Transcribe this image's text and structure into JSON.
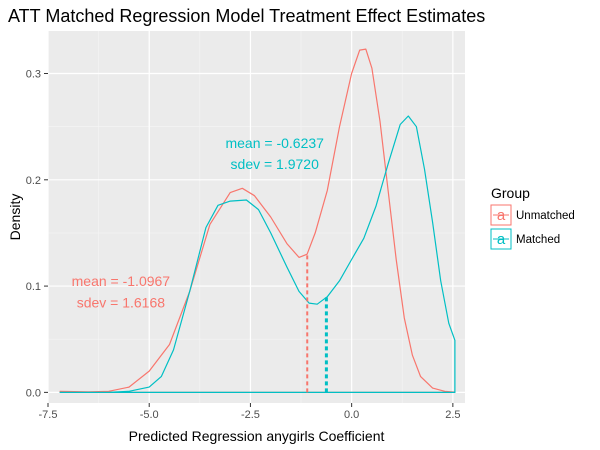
{
  "chart_data": {
    "type": "line",
    "title": "ATT Matched Regression Model Treatment Effect Estimates",
    "xlabel": "Predicted Regression anygirls Coefficient",
    "ylabel": "Density",
    "xlim": [
      -7.5,
      2.8
    ],
    "ylim": [
      -0.01,
      0.34
    ],
    "x_ticks": [
      -7.5,
      -5.0,
      -2.5,
      0.0,
      2.5
    ],
    "x_tick_labels": [
      "-7.5",
      "-5.0",
      "-2.5",
      "0.0",
      "2.5"
    ],
    "y_ticks": [
      0.0,
      0.1,
      0.2,
      0.3
    ],
    "y_tick_labels": [
      "0.0",
      "0.1",
      "0.2",
      "0.3"
    ],
    "grid": true,
    "background": "#ebebeb",
    "legend": {
      "title": "Group",
      "placement": "right",
      "key_glyph": "a",
      "entries": [
        "Unmatched",
        "Matched"
      ]
    },
    "series": [
      {
        "name": "Unmatched",
        "color": "#f8766d",
        "points": [
          [
            -7.2,
            0.001
          ],
          [
            -6.5,
            0.0005
          ],
          [
            -6.0,
            0.001
          ],
          [
            -5.5,
            0.005
          ],
          [
            -5.0,
            0.02
          ],
          [
            -4.5,
            0.045
          ],
          [
            -4.0,
            0.095
          ],
          [
            -3.5,
            0.158
          ],
          [
            -3.0,
            0.188
          ],
          [
            -2.7,
            0.192
          ],
          [
            -2.4,
            0.185
          ],
          [
            -2.0,
            0.165
          ],
          [
            -1.6,
            0.14
          ],
          [
            -1.3,
            0.127
          ],
          [
            -1.1,
            0.13
          ],
          [
            -0.9,
            0.15
          ],
          [
            -0.6,
            0.19
          ],
          [
            -0.3,
            0.25
          ],
          [
            0.0,
            0.3
          ],
          [
            0.2,
            0.322
          ],
          [
            0.35,
            0.323
          ],
          [
            0.5,
            0.305
          ],
          [
            0.7,
            0.255
          ],
          [
            0.9,
            0.19
          ],
          [
            1.1,
            0.125
          ],
          [
            1.3,
            0.07
          ],
          [
            1.5,
            0.035
          ],
          [
            1.7,
            0.015
          ],
          [
            2.0,
            0.004
          ],
          [
            2.3,
            0.001
          ],
          [
            2.55,
            0.0003
          ]
        ]
      },
      {
        "name": "Matched",
        "color": "#00bfc4",
        "points": [
          [
            -7.2,
            0.0
          ],
          [
            -6.0,
            0.0
          ],
          [
            -5.5,
            0.001
          ],
          [
            -5.0,
            0.005
          ],
          [
            -4.7,
            0.015
          ],
          [
            -4.4,
            0.04
          ],
          [
            -4.0,
            0.095
          ],
          [
            -3.6,
            0.155
          ],
          [
            -3.3,
            0.176
          ],
          [
            -3.0,
            0.18
          ],
          [
            -2.6,
            0.181
          ],
          [
            -2.3,
            0.172
          ],
          [
            -2.0,
            0.15
          ],
          [
            -1.6,
            0.118
          ],
          [
            -1.3,
            0.095
          ],
          [
            -1.05,
            0.084
          ],
          [
            -0.85,
            0.083
          ],
          [
            -0.6,
            0.09
          ],
          [
            -0.3,
            0.105
          ],
          [
            0.0,
            0.125
          ],
          [
            0.3,
            0.145
          ],
          [
            0.6,
            0.175
          ],
          [
            0.9,
            0.215
          ],
          [
            1.2,
            0.252
          ],
          [
            1.4,
            0.26
          ],
          [
            1.6,
            0.25
          ],
          [
            1.8,
            0.21
          ],
          [
            2.0,
            0.16
          ],
          [
            2.2,
            0.105
          ],
          [
            2.4,
            0.065
          ],
          [
            2.55,
            0.049
          ],
          [
            2.55,
            0.0
          ]
        ]
      }
    ],
    "mean_lines": [
      {
        "name": "Unmatched",
        "x": -1.0967,
        "y": 0.13,
        "color": "#f8766d",
        "dash": "4,3",
        "width": 2
      },
      {
        "name": "Matched",
        "x": -0.6237,
        "y": 0.09,
        "color": "#00bfc4",
        "dash": "4,3",
        "width": 3
      }
    ],
    "annotations": [
      {
        "series": "Matched",
        "color": "#00bfc4",
        "x": -1.9,
        "mean_text": "mean = -0.6237",
        "sdev_text": "sdev =  1.9720",
        "y_mean": 0.23,
        "y_sdev": 0.21
      },
      {
        "series": "Unmatched",
        "color": "#f8766d",
        "x": -5.7,
        "mean_text": "mean = -1.0967",
        "sdev_text": "sdev =  1.6168",
        "y_mean": 0.1,
        "y_sdev": 0.08
      }
    ]
  }
}
